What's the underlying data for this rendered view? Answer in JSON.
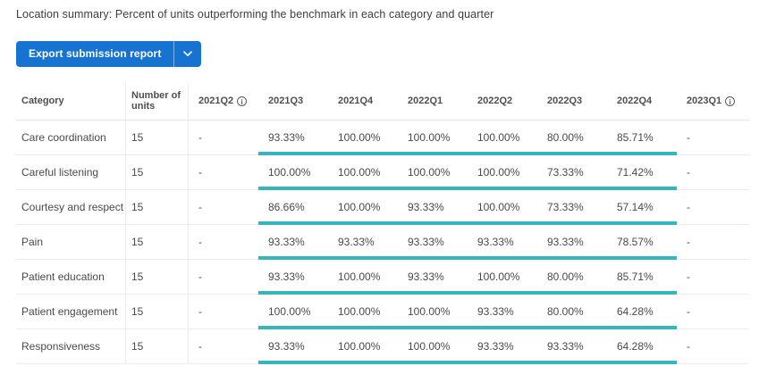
{
  "page": {
    "title": "Location summary: Percent of units outperforming the benchmark in each category and quarter"
  },
  "toolbar": {
    "export_button_label": "Export submission report",
    "dropdown_icon": "chevron-down",
    "info_icon_glyph": "i"
  },
  "colors": {
    "accent_blue": "#1673d2",
    "benchmark_bar_teal": "#35b6bc"
  },
  "table": {
    "columns": [
      {
        "label": "Category",
        "info": false
      },
      {
        "label": "Number of units",
        "info": false
      },
      {
        "label": "2021Q2",
        "info": true
      },
      {
        "label": "2021Q3",
        "info": false
      },
      {
        "label": "2021Q4",
        "info": false
      },
      {
        "label": "2022Q1",
        "info": false
      },
      {
        "label": "2022Q2",
        "info": false
      },
      {
        "label": "2022Q3",
        "info": false
      },
      {
        "label": "2022Q4",
        "info": false
      },
      {
        "label": "2023Q1",
        "info": true
      }
    ],
    "rows": [
      {
        "category": "Care coordination",
        "units": "15",
        "values": [
          "-",
          "93.33%",
          "100.00%",
          "100.00%",
          "100.00%",
          "80.00%",
          "85.71%",
          "-"
        ]
      },
      {
        "category": "Careful listening",
        "units": "15",
        "values": [
          "-",
          "100.00%",
          "100.00%",
          "100.00%",
          "100.00%",
          "73.33%",
          "71.42%",
          "-"
        ]
      },
      {
        "category": "Courtesy and respect",
        "units": "15",
        "values": [
          "-",
          "86.66%",
          "100.00%",
          "93.33%",
          "100.00%",
          "73.33%",
          "57.14%",
          "-"
        ]
      },
      {
        "category": "Pain",
        "units": "15",
        "values": [
          "-",
          "93.33%",
          "93.33%",
          "93.33%",
          "93.33%",
          "93.33%",
          "78.57%",
          "-"
        ]
      },
      {
        "category": "Patient education",
        "units": "15",
        "values": [
          "-",
          "93.33%",
          "100.00%",
          "93.33%",
          "100.00%",
          "80.00%",
          "85.71%",
          "-"
        ]
      },
      {
        "category": "Patient engagement",
        "units": "15",
        "values": [
          "-",
          "100.00%",
          "100.00%",
          "100.00%",
          "93.33%",
          "80.00%",
          "64.28%",
          "-"
        ]
      },
      {
        "category": "Responsiveness",
        "units": "15",
        "values": [
          "-",
          "93.33%",
          "100.00%",
          "100.00%",
          "93.33%",
          "93.33%",
          "64.28%",
          "-"
        ]
      }
    ]
  }
}
